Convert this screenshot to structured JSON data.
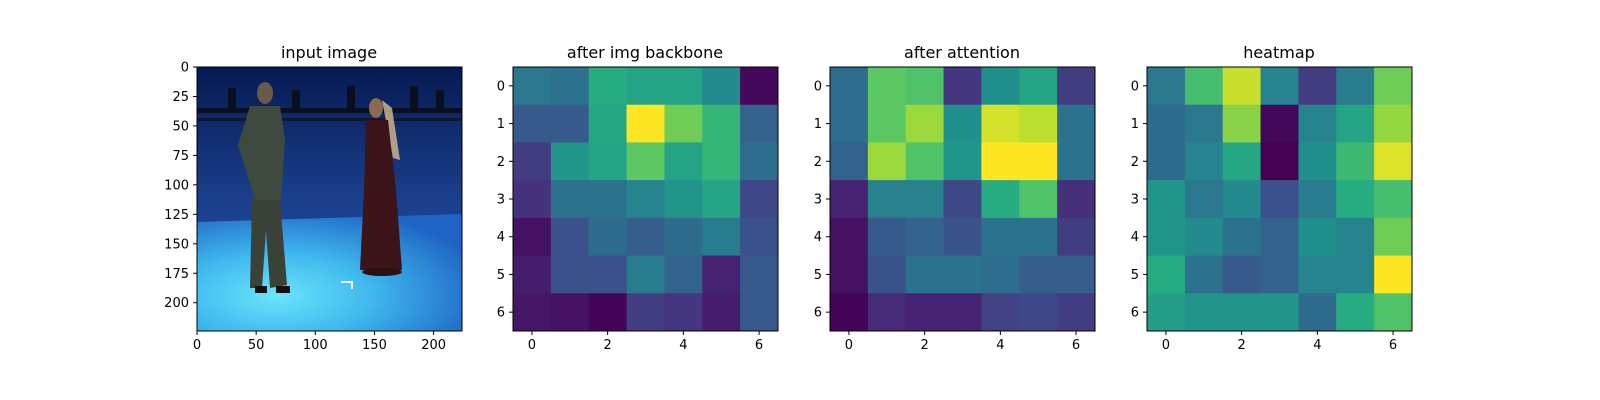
{
  "figure": {
    "background": "#ffffff"
  },
  "chart_data": [
    {
      "type": "image",
      "title": "input image",
      "xticks": [
        "0",
        "50",
        "100",
        "150",
        "200"
      ],
      "yticks": [
        "0",
        "25",
        "50",
        "75",
        "100",
        "125",
        "150",
        "175",
        "200"
      ],
      "xlim": [
        0,
        224
      ],
      "ylim": [
        0,
        224
      ],
      "description_free": true,
      "colors": {
        "backdrop_top": "#061a52",
        "backdrop_mid": "#1a3f8c",
        "floor_far": "#2b78d2",
        "floor_near": "#55d4f5",
        "rig": "#0a0f20",
        "person_left_clothes": "#3e4a3f",
        "person_right_dress": "#3a1418"
      }
    },
    {
      "type": "heatmap",
      "title": "after img backbone",
      "xticks": [
        "0",
        "2",
        "4",
        "6"
      ],
      "yticks": [
        "0",
        "1",
        "2",
        "3",
        "4",
        "5",
        "6"
      ],
      "colormap": "viridis",
      "values": [
        [
          0.4,
          0.38,
          0.62,
          0.58,
          0.58,
          0.48,
          0.02
        ],
        [
          0.28,
          0.28,
          0.6,
          1.0,
          0.78,
          0.66,
          0.32
        ],
        [
          0.18,
          0.52,
          0.58,
          0.75,
          0.58,
          0.66,
          0.36
        ],
        [
          0.15,
          0.38,
          0.38,
          0.45,
          0.52,
          0.58,
          0.22
        ],
        [
          0.05,
          0.25,
          0.35,
          0.3,
          0.35,
          0.42,
          0.25
        ],
        [
          0.08,
          0.25,
          0.25,
          0.42,
          0.32,
          0.1,
          0.28
        ],
        [
          0.06,
          0.05,
          0.01,
          0.18,
          0.16,
          0.08,
          0.28
        ]
      ]
    },
    {
      "type": "heatmap",
      "title": "after attention",
      "xticks": [
        "0",
        "2",
        "4",
        "6"
      ],
      "yticks": [
        "0",
        "1",
        "2",
        "3",
        "4",
        "5",
        "6"
      ],
      "colormap": "viridis",
      "values": [
        [
          0.36,
          0.75,
          0.72,
          0.16,
          0.5,
          0.58,
          0.18
        ],
        [
          0.36,
          0.75,
          0.85,
          0.5,
          0.94,
          0.9,
          0.38
        ],
        [
          0.32,
          0.85,
          0.72,
          0.52,
          1.0,
          1.0,
          0.38
        ],
        [
          0.1,
          0.44,
          0.44,
          0.22,
          0.62,
          0.72,
          0.14
        ],
        [
          0.05,
          0.28,
          0.32,
          0.26,
          0.38,
          0.38,
          0.18
        ],
        [
          0.05,
          0.26,
          0.38,
          0.38,
          0.36,
          0.3,
          0.3
        ],
        [
          0.01,
          0.12,
          0.1,
          0.1,
          0.2,
          0.22,
          0.18
        ]
      ]
    },
    {
      "type": "heatmap",
      "title": "heatmap",
      "xticks": [
        "0",
        "2",
        "4",
        "6"
      ],
      "yticks": [
        "0",
        "1",
        "2",
        "3",
        "4",
        "5",
        "6"
      ],
      "colormap": "viridis",
      "values": [
        [
          0.4,
          0.7,
          0.92,
          0.45,
          0.18,
          0.42,
          0.78
        ],
        [
          0.35,
          0.4,
          0.82,
          0.02,
          0.45,
          0.58,
          0.84
        ],
        [
          0.35,
          0.45,
          0.6,
          0.0,
          0.5,
          0.68,
          0.95
        ],
        [
          0.52,
          0.4,
          0.48,
          0.25,
          0.42,
          0.62,
          0.7
        ],
        [
          0.52,
          0.48,
          0.38,
          0.32,
          0.5,
          0.45,
          0.78
        ],
        [
          0.62,
          0.38,
          0.28,
          0.32,
          0.45,
          0.45,
          1.0
        ],
        [
          0.56,
          0.52,
          0.52,
          0.52,
          0.35,
          0.62,
          0.72
        ]
      ]
    }
  ]
}
